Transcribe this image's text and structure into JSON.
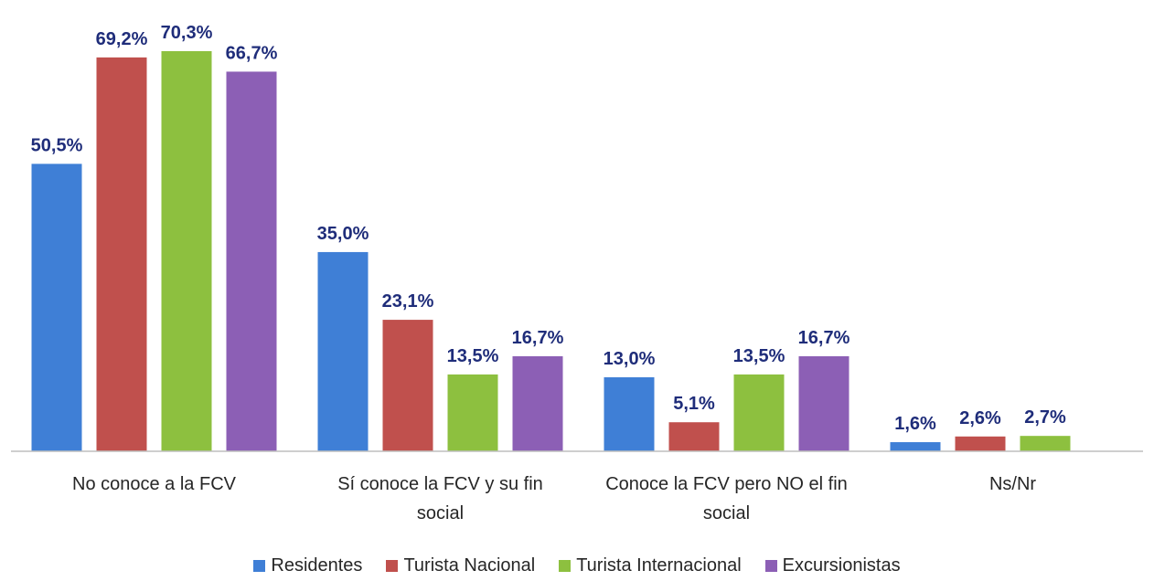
{
  "chart_data": {
    "type": "bar",
    "categories": [
      "No conoce a la FCV",
      "Sí conoce la FCV y su fin social",
      "Conoce la FCV pero NO el fin social",
      "Ns/Nr"
    ],
    "series": [
      {
        "name": "Residentes",
        "color": "#3f7fd6",
        "values": [
          50.5,
          35.0,
          13.0,
          1.6
        ],
        "value_labels": [
          "50,5%",
          "35,0%",
          "13,0%",
          "1,6%"
        ]
      },
      {
        "name": "Turista Nacional",
        "color": "#c0504d",
        "values": [
          69.2,
          23.1,
          5.1,
          2.6
        ],
        "value_labels": [
          "69,2%",
          "23,1%",
          "5,1%",
          "2,6%"
        ]
      },
      {
        "name": "Turista Internacional",
        "color": "#8dc03f",
        "values": [
          70.3,
          13.5,
          13.5,
          2.7
        ],
        "value_labels": [
          "70,3%",
          "13,5%",
          "13,5%",
          "2,7%"
        ]
      },
      {
        "name": "Excursionistas",
        "color": "#8c5fb5",
        "values": [
          66.7,
          16.7,
          16.7,
          null
        ],
        "value_labels": [
          "66,7%",
          "16,7%",
          "16,7%",
          null
        ]
      }
    ],
    "legend": "bottom"
  }
}
